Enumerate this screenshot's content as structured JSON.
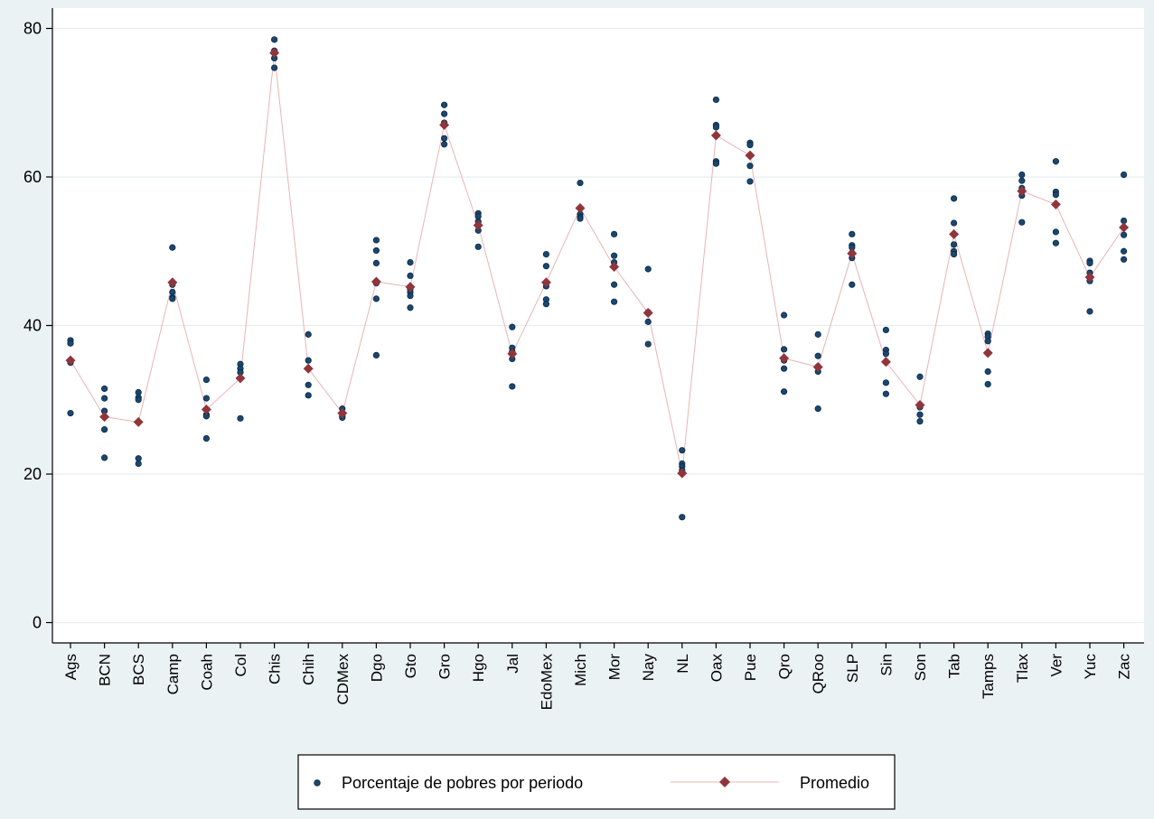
{
  "chart_data": {
    "type": "scatter",
    "title": "",
    "xlabel": "",
    "ylabel": "",
    "ylim": [
      0,
      80
    ],
    "yticks": [
      0,
      20,
      40,
      60,
      80
    ],
    "grid": true,
    "legend_position": "bottom",
    "categories": [
      "Ags",
      "BCN",
      "BCS",
      "Camp",
      "Coah",
      "Col",
      "Chis",
      "Chih",
      "CDMex",
      "Dgo",
      "Gto",
      "Gro",
      "Hgo",
      "Jal",
      "EdoMex",
      "Mich",
      "Mor",
      "Nay",
      "NL",
      "Oax",
      "Pue",
      "Qro",
      "QRoo",
      "SLP",
      "Sin",
      "Son",
      "Tab",
      "Tamps",
      "Tlax",
      "Ver",
      "Yuc",
      "Zac"
    ],
    "series": [
      {
        "name": "Porcentaje de pobres por periodo",
        "marker": "circle",
        "color": "#1a476f",
        "points": [
          [
            38.0,
            37.6,
            35.0,
            28.2
          ],
          [
            31.5,
            30.2,
            28.5,
            26.0,
            22.2
          ],
          [
            31.0,
            30.3,
            30.0,
            22.1,
            21.4
          ],
          [
            50.5,
            45.5,
            44.5,
            43.8,
            43.6
          ],
          [
            32.7,
            30.2,
            28.0,
            27.8,
            24.8
          ],
          [
            34.8,
            34.2,
            33.7,
            27.5
          ],
          [
            78.5,
            77.0,
            76.0,
            74.7
          ],
          [
            38.8,
            35.3,
            32.0,
            30.6
          ],
          [
            28.8,
            28.2,
            27.8,
            27.6
          ],
          [
            51.5,
            50.1,
            48.4,
            45.7,
            43.6,
            36.0
          ],
          [
            48.5,
            46.7,
            44.9,
            44.5,
            44.0,
            42.4
          ],
          [
            69.7,
            68.5,
            67.3,
            65.2,
            64.4
          ],
          [
            55.1,
            54.7,
            54.0,
            52.8,
            50.6
          ],
          [
            39.8,
            37.0,
            36.5,
            35.5,
            31.8
          ],
          [
            49.6,
            48.0,
            45.3,
            43.5,
            42.9
          ],
          [
            59.2,
            55.8,
            55.0,
            54.6,
            54.4
          ],
          [
            52.3,
            49.4,
            48.5,
            45.5,
            43.2
          ],
          [
            47.6,
            41.8,
            40.5,
            37.5
          ],
          [
            23.2,
            21.4,
            21.0,
            20.5,
            14.2
          ],
          [
            70.4,
            67.0,
            66.7,
            62.1,
            61.8
          ],
          [
            64.6,
            64.3,
            61.5,
            59.4
          ],
          [
            41.4,
            36.8,
            35.3,
            34.2,
            31.1
          ],
          [
            38.8,
            35.9,
            34.5,
            33.8,
            28.8
          ],
          [
            52.3,
            50.8,
            50.5,
            49.8,
            49.1,
            45.5
          ],
          [
            39.4,
            36.7,
            36.2,
            32.3,
            30.8
          ],
          [
            33.1,
            29.0,
            28.0,
            27.1
          ],
          [
            57.1,
            53.8,
            50.9,
            50.0,
            49.6
          ],
          [
            38.9,
            38.5,
            37.9,
            33.8,
            32.1
          ],
          [
            60.3,
            59.5,
            58.5,
            57.5,
            53.9
          ],
          [
            62.1,
            58.0,
            57.6,
            52.6,
            51.1
          ],
          [
            48.7,
            48.4,
            47.1,
            46.0,
            41.9
          ],
          [
            60.3,
            54.1,
            52.2,
            50.0,
            48.9
          ]
        ]
      },
      {
        "name": "Promedio",
        "marker": "diamond",
        "color": "#90353b",
        "line_color": "#e8b4b6",
        "values": [
          35.3,
          27.7,
          27.0,
          45.8,
          28.7,
          32.9,
          76.7,
          34.2,
          28.2,
          45.9,
          45.2,
          67.0,
          53.5,
          36.2,
          45.8,
          55.8,
          47.9,
          41.7,
          20.1,
          65.6,
          62.9,
          35.6,
          34.4,
          49.7,
          35.1,
          29.3,
          52.3,
          36.3,
          58.1,
          56.3,
          46.5,
          53.2
        ]
      }
    ]
  },
  "legend": {
    "items": [
      {
        "label": "Porcentaje de pobres por periodo"
      },
      {
        "label": "Promedio"
      }
    ]
  }
}
